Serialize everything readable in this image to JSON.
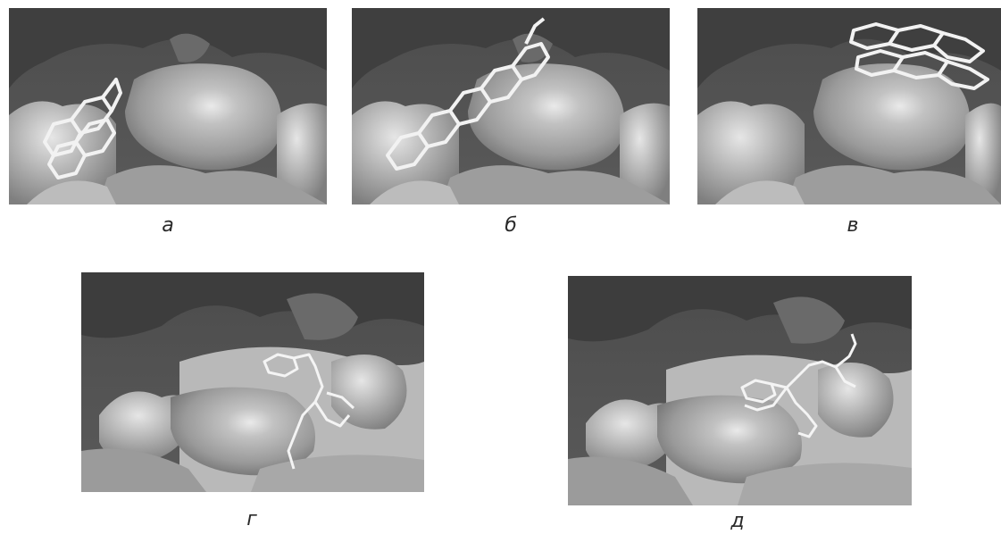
{
  "figure": {
    "panels": [
      {
        "label": "а",
        "subject": "planar-polyaromatic-ligand-in-pocket-left"
      },
      {
        "label": "б",
        "subject": "planar-polyaromatic-ligand-above-bulge"
      },
      {
        "label": "в",
        "subject": "stacked-planar-ligands-on-rim"
      },
      {
        "label": "г",
        "subject": "flexible-ligand-in-groove"
      },
      {
        "label": "д",
        "subject": "flexible-ligand-in-groove-variant"
      }
    ]
  },
  "colors": {
    "surface_dark": "#4a4a4a",
    "surface_mid": "#7a7a7a",
    "surface_light": "#b3b3b3",
    "surface_highlight": "#e9e9e9",
    "ligand": "#f2f2f2",
    "caption": "#2a2a2a"
  }
}
